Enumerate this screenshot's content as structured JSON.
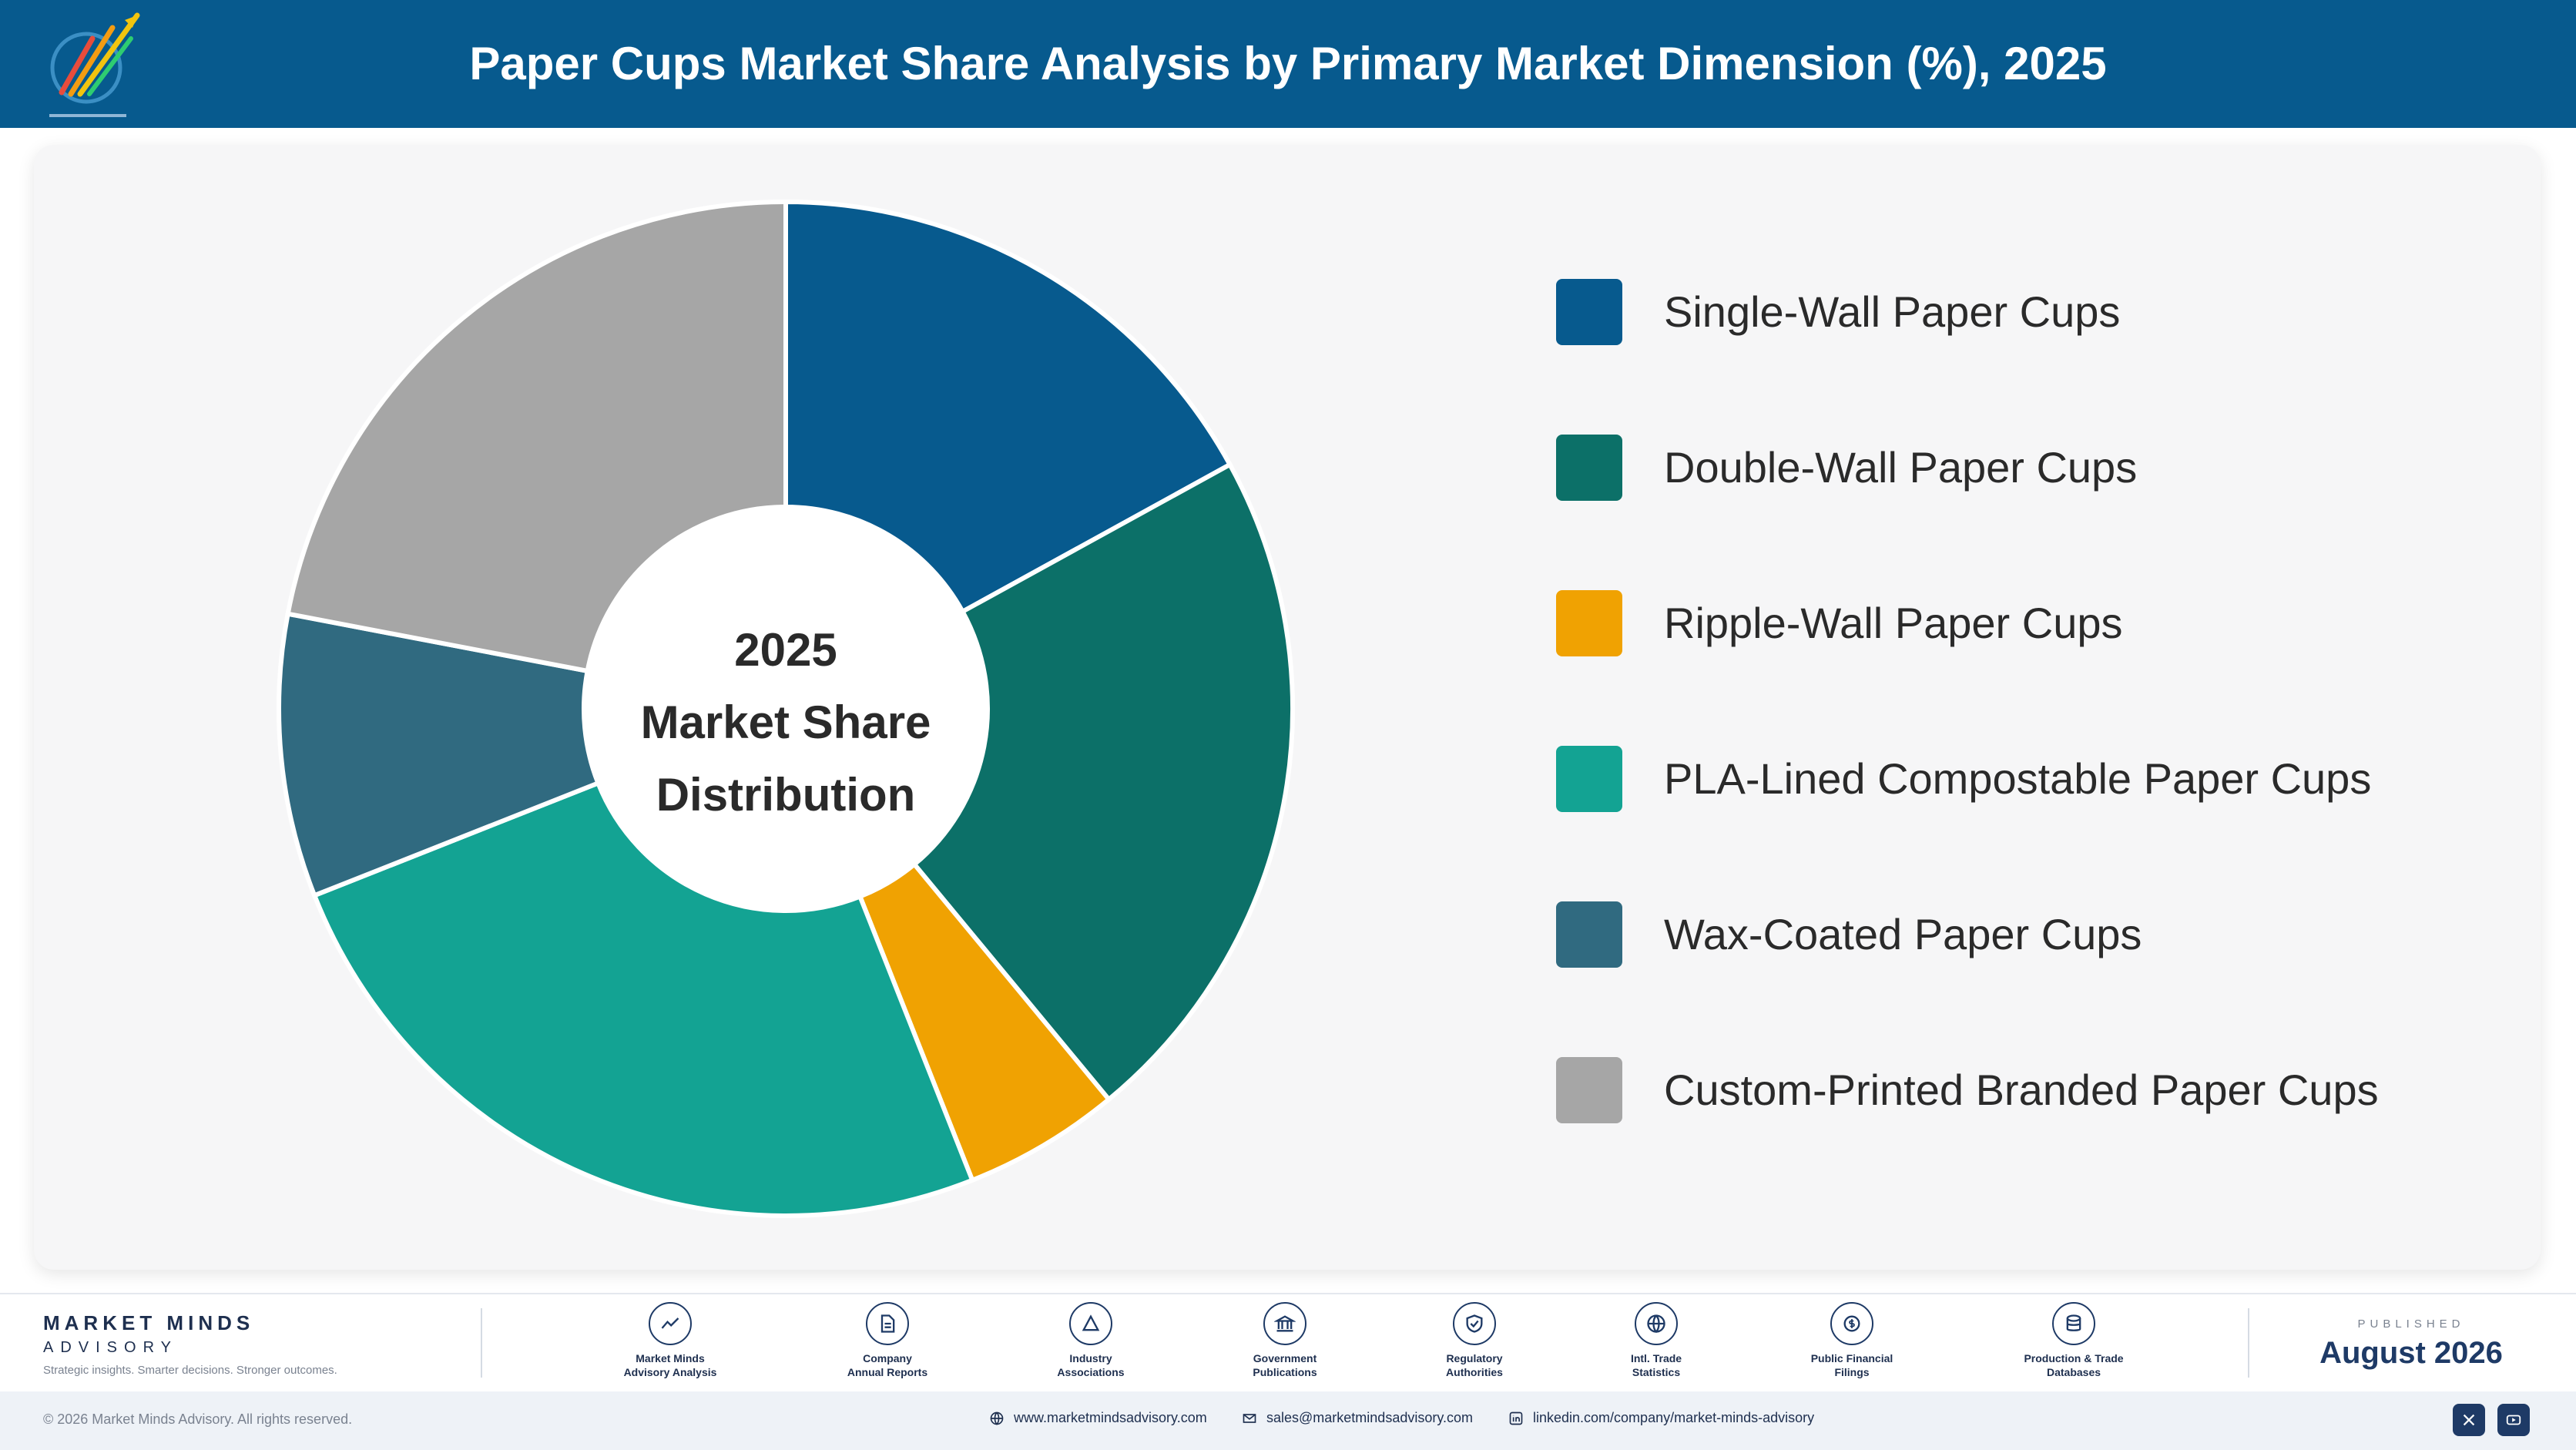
{
  "header": {
    "title": "Paper Cups Market Share Analysis by Primary Market Dimension (%), 2025"
  },
  "chart_data": {
    "type": "pie",
    "variant": "donut",
    "title": "Paper Cups Market Share Analysis by Primary Market Dimension (%), 2025",
    "center_label": [
      "2025",
      "Market Share",
      "Distribution"
    ],
    "legend_position": "right",
    "categories": [
      "Single-Wall Paper Cups",
      "Double-Wall Paper Cups",
      "Ripple-Wall Paper Cups",
      "PLA-Lined Compostable Paper Cups",
      "Wax-Coated Paper Cups",
      "Custom-Printed Branded Paper Cups"
    ],
    "values": [
      17,
      22,
      5,
      25,
      9,
      22
    ],
    "colors": [
      "#075a8e",
      "#0c7068",
      "#f0a202",
      "#13a393",
      "#306a80",
      "#a6a6a6"
    ]
  },
  "footer": {
    "brand_name": "MARKET MINDS",
    "brand_sub": "ADVISORY",
    "tagline": "Strategic insights. Smarter decisions. Stronger outcomes.",
    "sources": [
      {
        "line1": "Market Minds",
        "line2": "Advisory Analysis",
        "icon": "trend-icon"
      },
      {
        "line1": "Company",
        "line2": "Annual Reports",
        "icon": "document-icon"
      },
      {
        "line1": "Industry",
        "line2": "Associations",
        "icon": "network-icon"
      },
      {
        "line1": "Government",
        "line2": "Publications",
        "icon": "building-icon"
      },
      {
        "line1": "Regulatory",
        "line2": "Authorities",
        "icon": "shield-icon"
      },
      {
        "line1": "Intl. Trade",
        "line2": "Statistics",
        "icon": "globe-icon"
      },
      {
        "line1": "Public Financial",
        "line2": "Filings",
        "icon": "coin-icon"
      },
      {
        "line1": "Production & Trade",
        "line2": "Databases",
        "icon": "database-icon"
      }
    ],
    "published_label": "PUBLISHED",
    "published_date": "August 2026"
  },
  "bottom": {
    "copyright": "© 2026 Market Minds Advisory. All rights reserved.",
    "website": "www.marketmindsadvisory.com",
    "email": "sales@marketmindsadvisory.com",
    "linkedin": "linkedin.com/company/market-minds-advisory"
  }
}
